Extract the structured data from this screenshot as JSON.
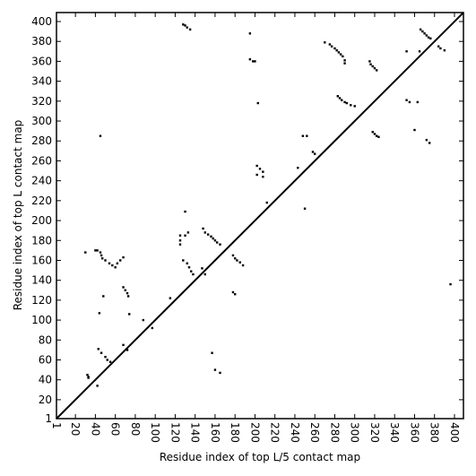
{
  "chart_data": {
    "type": "scatter",
    "xlabel": "Residue index of top L/5 contact map",
    "ylabel": "Residue index of top L contact map",
    "xlim": [
      1,
      409
    ],
    "ylim": [
      1,
      409
    ],
    "xticks": [
      1,
      20,
      40,
      60,
      80,
      100,
      120,
      140,
      160,
      180,
      200,
      220,
      240,
      260,
      280,
      300,
      320,
      340,
      360,
      380,
      400
    ],
    "yticks": [
      1,
      20,
      40,
      60,
      80,
      100,
      120,
      140,
      160,
      180,
      200,
      220,
      240,
      260,
      280,
      300,
      320,
      340,
      360,
      380,
      400
    ],
    "diagonal": true,
    "color": "#000000",
    "x": [
      128,
      130,
      132,
      135,
      195,
      195,
      198,
      200,
      203,
      270,
      275,
      277,
      280,
      282,
      284,
      286,
      288,
      290,
      290,
      315,
      316,
      318,
      320,
      322,
      366,
      368,
      370,
      372,
      374,
      376,
      384,
      386,
      390,
      352,
      365,
      283,
      285,
      287,
      290,
      292,
      296,
      300,
      352,
      355,
      363,
      318,
      320,
      322,
      324,
      372,
      375,
      360,
      248,
      252,
      258,
      260,
      202,
      205,
      208,
      202,
      208,
      243,
      212,
      250,
      130,
      125,
      125,
      125,
      130,
      133,
      148,
      150,
      153,
      156,
      158,
      160,
      162,
      165,
      178,
      180,
      182,
      185,
      188,
      128,
      132,
      134,
      136,
      138,
      147,
      150,
      40,
      42,
      45,
      46,
      47,
      50,
      54,
      57,
      60,
      62,
      65,
      68,
      30,
      68,
      70,
      72,
      73,
      74,
      48,
      45,
      44,
      115,
      88,
      97,
      178,
      180,
      43,
      46,
      50,
      52,
      55,
      68,
      72,
      32,
      33,
      33,
      42,
      157,
      160,
      165,
      396
    ],
    "y": [
      397,
      396,
      394,
      392,
      388,
      362,
      360,
      360,
      318,
      379,
      377,
      375,
      373,
      371,
      369,
      367,
      365,
      361,
      358,
      360,
      357,
      355,
      353,
      351,
      392,
      390,
      388,
      386,
      384,
      383,
      375,
      373,
      371,
      370,
      370,
      325,
      323,
      321,
      319,
      318,
      316,
      315,
      321,
      319,
      319,
      289,
      287,
      285,
      284,
      281,
      278,
      291,
      285,
      285,
      269,
      267,
      255,
      252,
      249,
      246,
      244,
      253,
      218,
      212,
      209,
      185,
      180,
      176,
      185,
      188,
      192,
      188,
      186,
      184,
      182,
      180,
      178,
      176,
      165,
      162,
      160,
      158,
      155,
      160,
      157,
      153,
      149,
      146,
      152,
      146,
      170,
      170,
      168,
      165,
      162,
      160,
      157,
      155,
      153,
      157,
      160,
      163,
      168,
      133,
      130,
      127,
      124,
      106,
      124,
      285,
      107,
      122,
      100,
      92,
      128,
      126,
      71,
      67,
      63,
      60,
      58,
      75,
      70,
      45,
      43,
      42,
      34,
      67,
      50,
      47,
      136
    ]
  }
}
